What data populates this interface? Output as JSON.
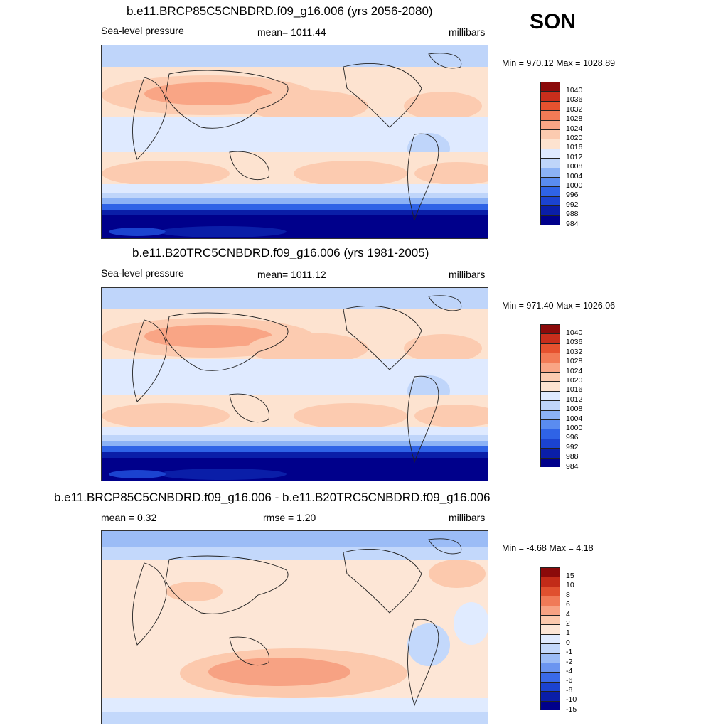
{
  "season": "SON",
  "palettes": {
    "abs": [
      "#00008b",
      "#0a1ea8",
      "#1b43d0",
      "#2f63e6",
      "#5a8cf0",
      "#8cb2f5",
      "#bfd5fa",
      "#dfeaff",
      "#fde3d0",
      "#fccbb0",
      "#f9a585",
      "#f27b56",
      "#e6522f",
      "#c82e1c",
      "#8b0a0a"
    ],
    "diff": [
      "#00008b",
      "#0a1ea8",
      "#1b43d0",
      "#3a6ae8",
      "#6b95f0",
      "#9bbcf6",
      "#c3d8fb",
      "#e0ebff",
      "#fde6d6",
      "#fcc9ad",
      "#f7a283",
      "#f07a57",
      "#e0502f",
      "#c22b18",
      "#8b0a0a"
    ]
  },
  "panels": [
    {
      "title": "b.e11.BRCP85C5CNBDRD.f09_g16.006 (yrs 2056-2080)",
      "left_label": "Sea-level pressure",
      "center_label": "mean= 1011.44",
      "right_label": "millibars",
      "minmax": "Min = 970.12 Max = 1028.89",
      "legend_labels": [
        "1040",
        "1036",
        "1032",
        "1028",
        "1024",
        "1020",
        "1016",
        "1012",
        "1008",
        "1004",
        "1000",
        "996",
        "992",
        "988",
        "984"
      ],
      "field": "abs"
    },
    {
      "title": "b.e11.B20TRC5CNBDRD.f09_g16.006 (yrs 1981-2005)",
      "left_label": "Sea-level pressure",
      "center_label": "mean= 1011.12",
      "right_label": "millibars",
      "minmax": "Min = 971.40 Max = 1026.06",
      "legend_labels": [
        "1040",
        "1036",
        "1032",
        "1028",
        "1024",
        "1020",
        "1016",
        "1012",
        "1008",
        "1004",
        "1000",
        "996",
        "992",
        "988",
        "984"
      ],
      "field": "abs"
    },
    {
      "title": "b.e11.BRCP85C5CNBDRD.f09_g16.006 - b.e11.B20TRC5CNBDRD.f09_g16.006",
      "left_label": "mean =   0.32",
      "center_label": "rmse =    1.20",
      "right_label": "millibars",
      "minmax": "Min =  -4.68 Max =   4.18",
      "legend_labels": [
        "15",
        "10",
        "8",
        "6",
        "4",
        "2",
        "1",
        "0",
        "-1",
        "-2",
        "-4",
        "-6",
        "-8",
        "-10",
        "-15"
      ],
      "field": "diff"
    }
  ]
}
